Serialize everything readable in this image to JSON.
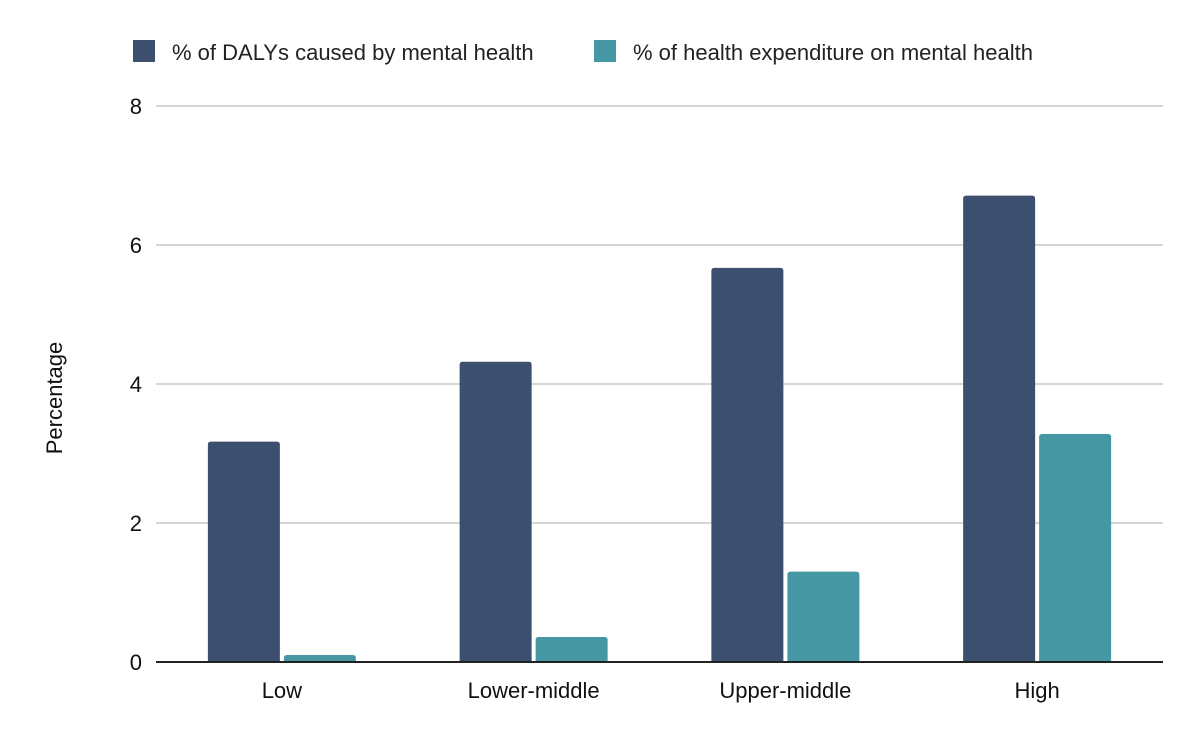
{
  "chart_data": {
    "type": "bar",
    "categories": [
      "Low",
      "Lower-middle",
      "Upper-middle",
      "High"
    ],
    "series": [
      {
        "name": "% of DALYs caused by mental health",
        "color": "#3d4f6e",
        "values": [
          3.17,
          4.32,
          5.67,
          6.71
        ]
      },
      {
        "name": "% of health expenditure on mental health",
        "color": "#4597a4",
        "values": [
          0.1,
          0.36,
          1.3,
          3.28
        ]
      }
    ],
    "ylabel": "Percentage",
    "xlabel": "",
    "ylim": [
      0,
      8
    ],
    "yticks": [
      0,
      2,
      4,
      6,
      8
    ],
    "grid": true,
    "legend_position": "top"
  }
}
